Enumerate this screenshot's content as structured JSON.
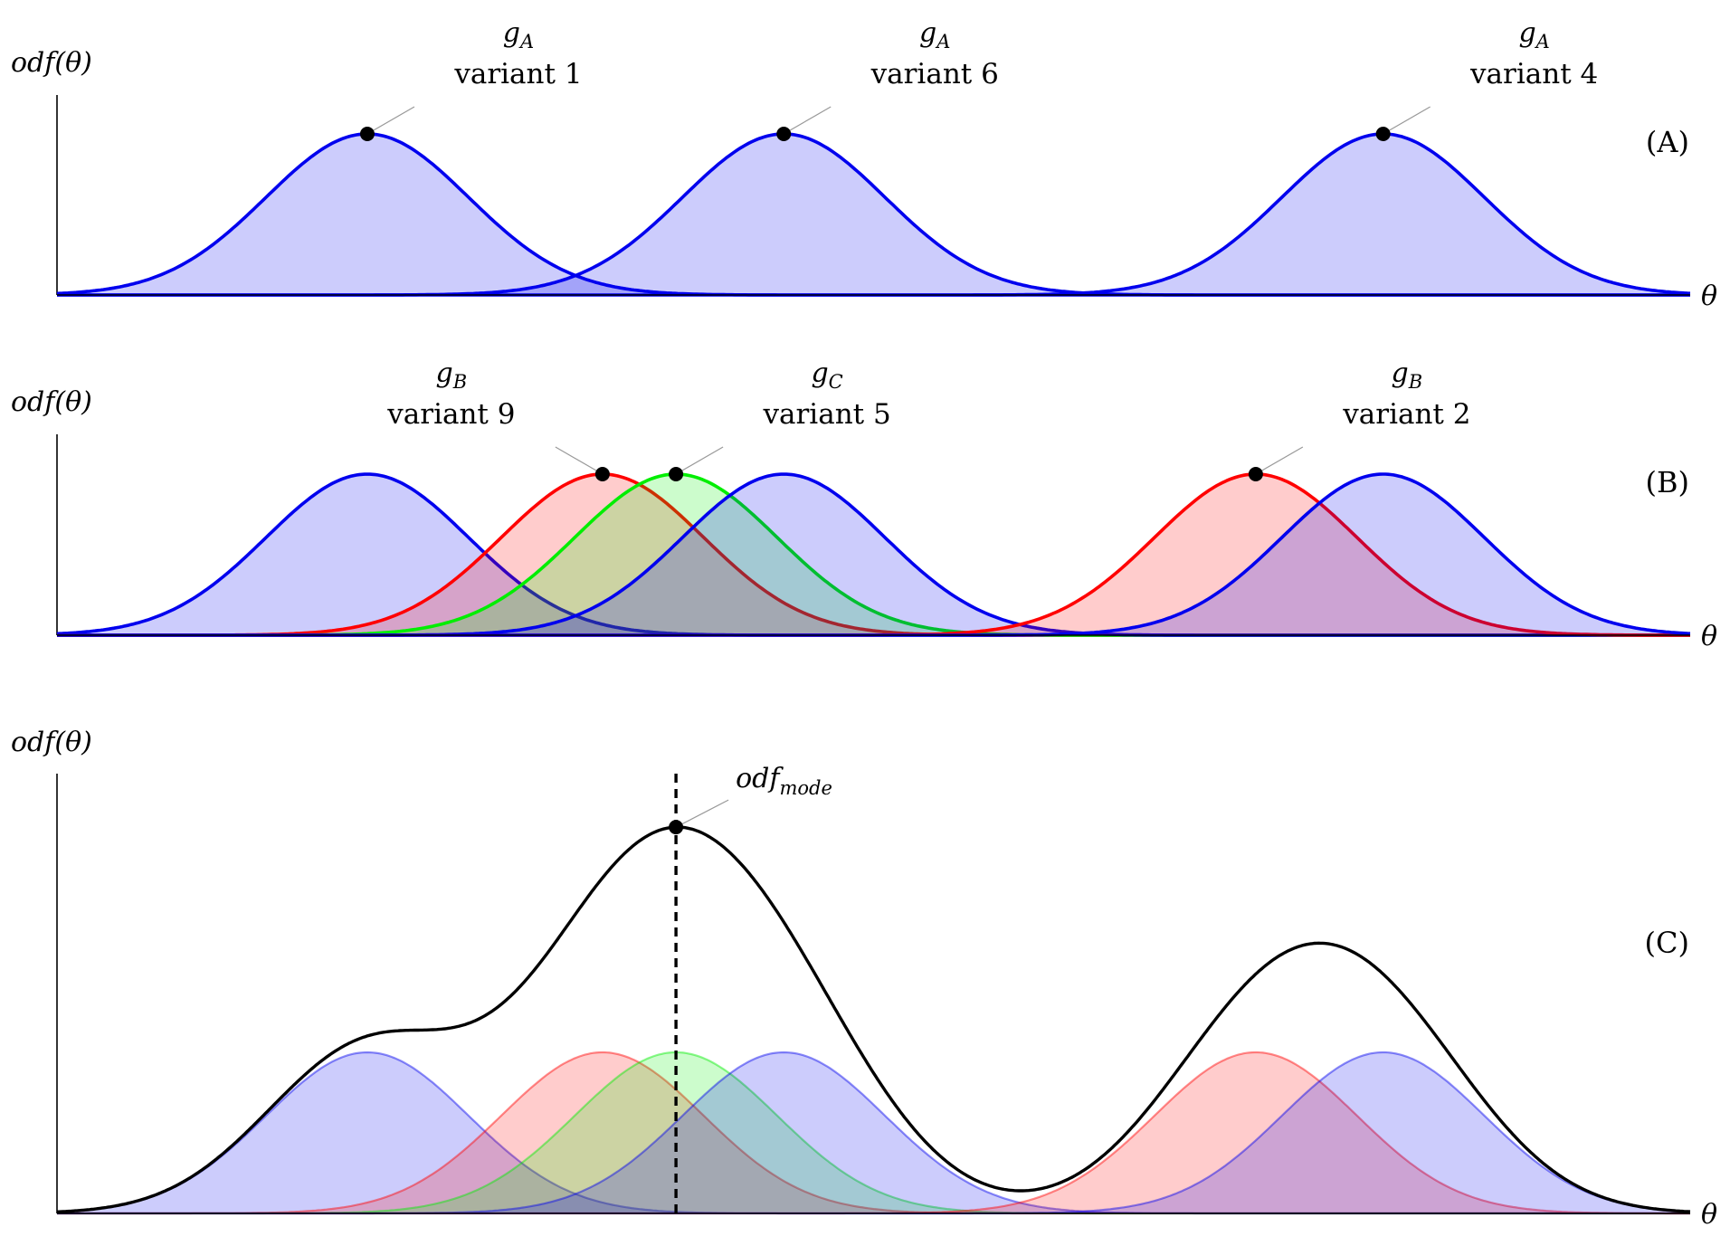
{
  "figure": {
    "y_axis_label": "odf(θ)",
    "x_axis_label": "θ",
    "mode_label": {
      "base": "odf",
      "sub": "mode"
    }
  },
  "colors": {
    "blue": "#0000ee",
    "red": "#ff0000",
    "green": "#00ee00",
    "sum": "#000000"
  },
  "panels": [
    {
      "id": "A",
      "label": "(A)",
      "curves": [
        {
          "gene": "A",
          "color": "blue",
          "mean": 0.19
        },
        {
          "gene": "A",
          "color": "blue",
          "mean": 0.445
        },
        {
          "gene": "A",
          "color": "blue",
          "mean": 0.812
        }
      ],
      "annotations": [
        {
          "gene": {
            "base": "g",
            "sub": "A"
          },
          "variant": "variant 1",
          "curve": 0
        },
        {
          "gene": {
            "base": "g",
            "sub": "A"
          },
          "variant": "variant 6",
          "curve": 1
        },
        {
          "gene": {
            "base": "g",
            "sub": "A"
          },
          "variant": "variant 4",
          "curve": 2
        }
      ]
    },
    {
      "id": "B",
      "label": "(B)",
      "curves": [
        {
          "gene": "A",
          "color": "blue",
          "mean": 0.19
        },
        {
          "gene": "B",
          "color": "red",
          "mean": 0.334
        },
        {
          "gene": "C",
          "color": "green",
          "mean": 0.379
        },
        {
          "gene": "A",
          "color": "blue",
          "mean": 0.445
        },
        {
          "gene": "B",
          "color": "red",
          "mean": 0.734
        },
        {
          "gene": "A",
          "color": "blue",
          "mean": 0.812
        }
      ],
      "annotations": [
        {
          "gene": {
            "base": "g",
            "sub": "B"
          },
          "variant": "variant 9",
          "curve": 1
        },
        {
          "gene": {
            "base": "g",
            "sub": "C"
          },
          "variant": "variant 5",
          "curve": 2
        },
        {
          "gene": {
            "base": "g",
            "sub": "B"
          },
          "variant": "variant 2",
          "curve": 4
        }
      ]
    },
    {
      "id": "C",
      "label": "(C)",
      "show_sum": true,
      "mode_theta": 0.379,
      "curves": [
        {
          "gene": "A",
          "color": "blue",
          "mean": 0.19
        },
        {
          "gene": "B",
          "color": "red",
          "mean": 0.334
        },
        {
          "gene": "C",
          "color": "green",
          "mean": 0.379
        },
        {
          "gene": "A",
          "color": "blue",
          "mean": 0.445
        },
        {
          "gene": "B",
          "color": "red",
          "mean": 0.734
        },
        {
          "gene": "A",
          "color": "blue",
          "mean": 0.812
        }
      ]
    }
  ]
}
